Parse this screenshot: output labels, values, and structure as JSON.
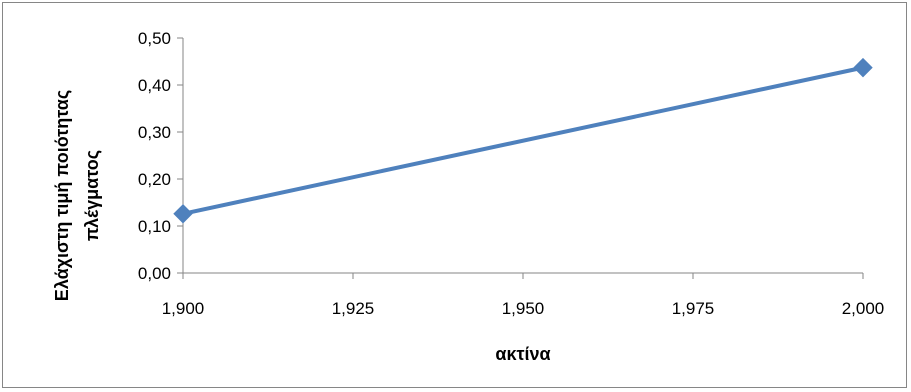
{
  "chart_data": {
    "type": "line",
    "title": "",
    "xlabel": "ακτίνα",
    "ylabel_lines": [
      "Ελάχιστη τιμή ποιότητας",
      "πλέγματος"
    ],
    "x": [
      1.9,
      2.0
    ],
    "series": [
      {
        "values": [
          0.126,
          0.437
        ],
        "color": "#4f81bd",
        "marker": "diamond"
      }
    ],
    "xlim": [
      1.9,
      2.0
    ],
    "ylim": [
      0.0,
      0.5
    ],
    "x_ticks": [
      1.9,
      1.925,
      1.95,
      1.975,
      2.0
    ],
    "x_tick_labels": [
      "1,900",
      "1,925",
      "1,950",
      "1,975",
      "2,000"
    ],
    "y_ticks": [
      0.0,
      0.1,
      0.2,
      0.3,
      0.4,
      0.5
    ],
    "y_tick_labels": [
      "0,00",
      "0,10",
      "0,20",
      "0,30",
      "0,40",
      "0,50"
    ],
    "grid": false,
    "legend": "none"
  }
}
